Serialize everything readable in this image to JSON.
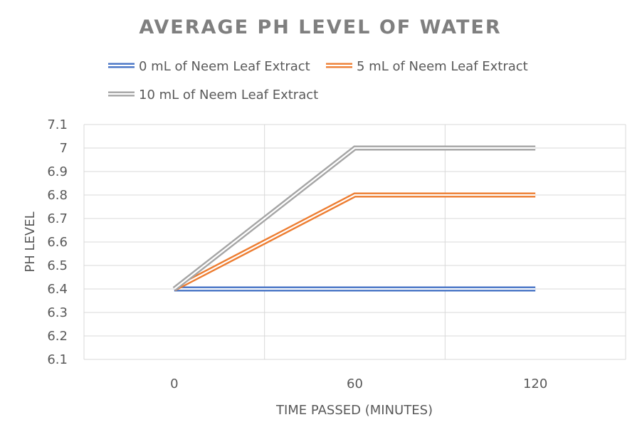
{
  "chart_data": {
    "type": "line",
    "title": "AVERAGE PH LEVEL OF WATER",
    "xlabel": "TIME PASSED (MINUTES)",
    "ylabel": "PH LEVEL",
    "categories": [
      "0",
      "60",
      "120"
    ],
    "ylim": [
      6.1,
      7.1
    ],
    "yticks": [
      "6.1",
      "6.2",
      "6.3",
      "6.4",
      "6.5",
      "6.6",
      "6.7",
      "6.8",
      "6.9",
      "7",
      "7.1"
    ],
    "grid": true,
    "legend_position": "top",
    "series": [
      {
        "name": "0 mL of Neem Leaf Extract",
        "values": [
          6.4,
          6.4,
          6.4
        ],
        "color": "#4472c4"
      },
      {
        "name": "5 mL of Neem Leaf Extract",
        "values": [
          6.4,
          6.8,
          6.8
        ],
        "color": "#ed7d31"
      },
      {
        "name": "10 mL of Neem Leaf Extract",
        "values": [
          6.4,
          7.0,
          7.0
        ],
        "color": "#a5a5a5"
      }
    ]
  }
}
